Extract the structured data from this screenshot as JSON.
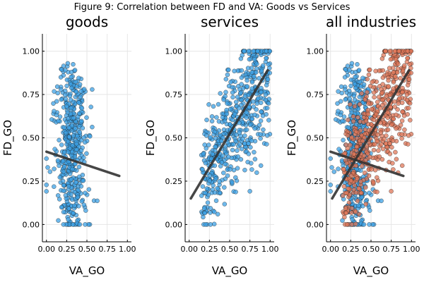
{
  "figure_title": "Figure 9: Correlation between FD and VA: Goods vs Services",
  "chart_data": [
    {
      "type": "scatter",
      "title": "goods",
      "xlabel": "VA_GO",
      "ylabel": "FD_GO",
      "xlim": [
        -0.05,
        1.05
      ],
      "ylim": [
        -0.1,
        1.1
      ],
      "xticks": [
        0.0,
        0.25,
        0.5,
        0.75,
        1.0
      ],
      "xtick_labels": [
        "0.00",
        "0.25",
        "0.50",
        "0.75",
        "1.00"
      ],
      "yticks": [
        0.0,
        0.25,
        0.5,
        0.75,
        1.0
      ],
      "ytick_labels": [
        "0.00",
        "0.25",
        "0.50",
        "0.75",
        "1.00"
      ],
      "grid": true,
      "series": [
        {
          "color": "#3da1e6",
          "group": "goods",
          "x_center": 0.3,
          "x_spread": 0.12,
          "y_range": [
            0.0,
            1.0
          ],
          "n": 450,
          "trend": [
            [
              0.0,
              0.42
            ],
            [
              0.9,
              0.28
            ]
          ]
        }
      ]
    },
    {
      "type": "scatter",
      "title": "services",
      "xlabel": "VA_GO",
      "ylabel": "FD_GO",
      "xlim": [
        -0.05,
        1.05
      ],
      "ylim": [
        -0.1,
        1.1
      ],
      "xticks": [
        0.0,
        0.25,
        0.5,
        0.75,
        1.0
      ],
      "xtick_labels": [
        "0.00",
        "0.25",
        "0.50",
        "0.75",
        "1.00"
      ],
      "yticks": [
        0.0,
        0.25,
        0.5,
        0.75,
        1.0
      ],
      "ytick_labels": [
        "0.00",
        "0.25",
        "0.50",
        "0.75",
        "1.00"
      ],
      "grid": true,
      "series": [
        {
          "color": "#3da1e6",
          "group": "services",
          "n": 550,
          "trend": [
            [
              0.02,
              0.15
            ],
            [
              0.97,
              0.89
            ]
          ]
        }
      ]
    },
    {
      "type": "scatter",
      "title": "all industries",
      "xlabel": "VA_GO",
      "ylabel": "FD_GO",
      "xlim": [
        -0.05,
        1.05
      ],
      "ylim": [
        -0.1,
        1.1
      ],
      "xticks": [
        0.0,
        0.25,
        0.5,
        0.75,
        1.0
      ],
      "xtick_labels": [
        "0.00",
        "0.25",
        "0.50",
        "0.75",
        "1.00"
      ],
      "yticks": [
        0.0,
        0.25,
        0.5,
        0.75,
        1.0
      ],
      "ytick_labels": [
        "0.00",
        "0.25",
        "0.50",
        "0.75",
        "1.00"
      ],
      "grid": true,
      "series": [
        {
          "color": "#3da1e6",
          "group": "goods",
          "x_center": 0.3,
          "x_spread": 0.12,
          "y_range": [
            0.0,
            1.0
          ],
          "n": 450,
          "trend": [
            [
              0.0,
              0.42
            ],
            [
              0.9,
              0.28
            ]
          ]
        },
        {
          "color": "#e0785a",
          "group": "services",
          "n": 550,
          "trend": [
            [
              0.02,
              0.15
            ],
            [
              0.97,
              0.89
            ]
          ]
        }
      ]
    }
  ]
}
